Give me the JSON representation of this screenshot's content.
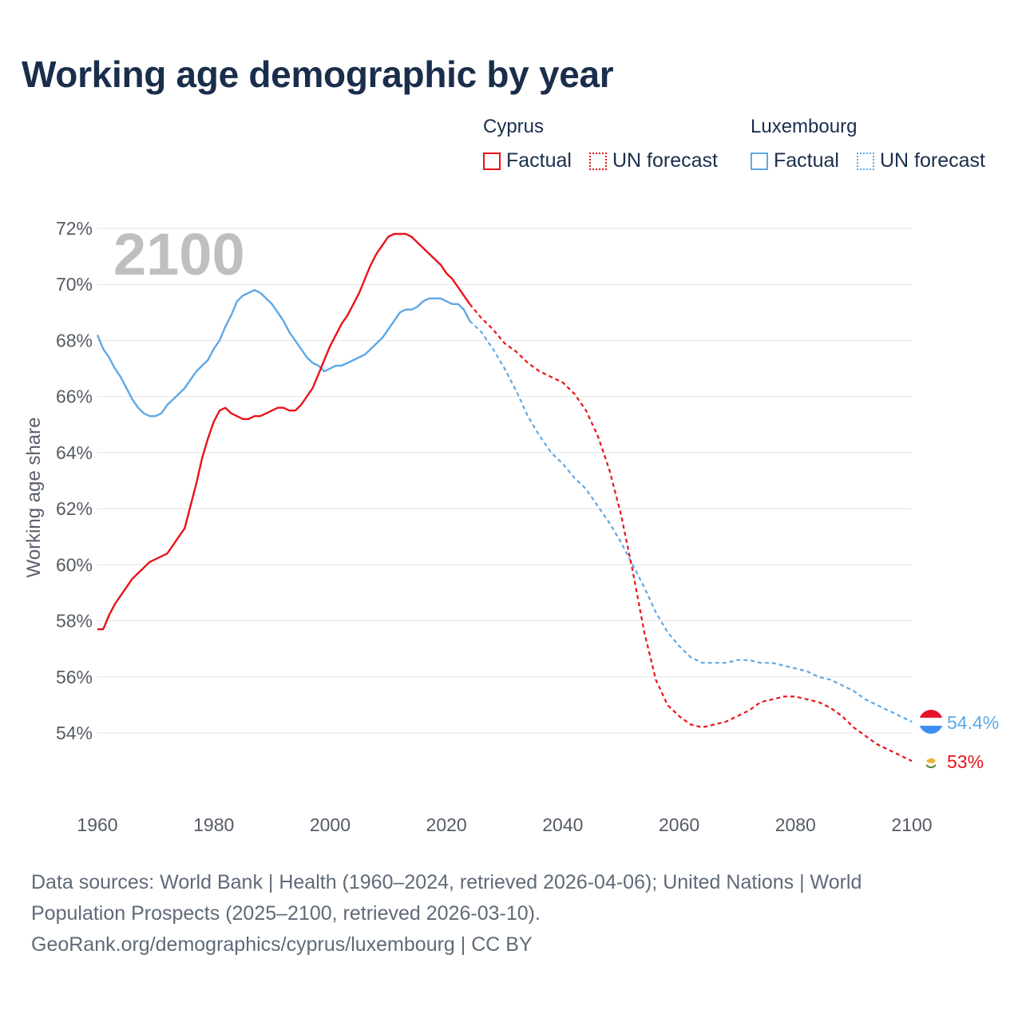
{
  "title": "Working age demographic by year",
  "legend": {
    "groups": [
      {
        "name": "Cyprus",
        "color": "#e8131b",
        "factual_label": "Factual",
        "forecast_label": "UN forecast"
      },
      {
        "name": "Luxembourg",
        "color": "#5fa8e6",
        "factual_label": "Factual",
        "forecast_label": "UN forecast"
      }
    ]
  },
  "footer": {
    "line1": "Data sources: World Bank | Health (1960–2024, retrieved 2026-04-06); United Nations | World",
    "line2": "Population Prospects (2025–2100, retrieved 2026-03-10).",
    "line3": "GeoRank.org/demographics/cyprus/luxembourg | CC BY"
  },
  "chart_data": {
    "type": "line",
    "title": "Working age demographic by year",
    "xlabel": "",
    "ylabel": "Working age share",
    "current_year_label": "2100",
    "xlim": [
      1960,
      2100
    ],
    "ylim": [
      52,
      72
    ],
    "x_ticks": [
      1960,
      1980,
      2000,
      2020,
      2040,
      2060,
      2080,
      2100
    ],
    "y_ticks": [
      54,
      56,
      58,
      60,
      62,
      64,
      66,
      68,
      70,
      72
    ],
    "y_tick_labels": [
      "54%",
      "56%",
      "58%",
      "60%",
      "62%",
      "64%",
      "66%",
      "68%",
      "70%",
      "72%"
    ],
    "grid": true,
    "series": [
      {
        "name": "Cyprus",
        "color": "#e8131b",
        "end_label": "53%",
        "flag_icon": "cyprus-flag-icon",
        "factual": {
          "x": [
            1960,
            1961,
            1962,
            1963,
            1964,
            1965,
            1966,
            1967,
            1968,
            1969,
            1970,
            1971,
            1972,
            1973,
            1974,
            1975,
            1976,
            1977,
            1978,
            1979,
            1980,
            1981,
            1982,
            1983,
            1984,
            1985,
            1986,
            1987,
            1988,
            1989,
            1990,
            1991,
            1992,
            1993,
            1994,
            1995,
            1996,
            1997,
            1998,
            1999,
            2000,
            2001,
            2002,
            2003,
            2004,
            2005,
            2006,
            2007,
            2008,
            2009,
            2010,
            2011,
            2012,
            2013,
            2014,
            2015,
            2016,
            2017,
            2018,
            2019,
            2020,
            2021,
            2022,
            2023,
            2024
          ],
          "y": [
            57.7,
            57.7,
            58.2,
            58.6,
            58.9,
            59.2,
            59.5,
            59.7,
            59.9,
            60.1,
            60.2,
            60.3,
            60.4,
            60.7,
            61.0,
            61.3,
            62.1,
            62.9,
            63.8,
            64.5,
            65.1,
            65.5,
            65.6,
            65.4,
            65.3,
            65.2,
            65.2,
            65.3,
            65.3,
            65.4,
            65.5,
            65.6,
            65.6,
            65.5,
            65.5,
            65.7,
            66.0,
            66.3,
            66.8,
            67.3,
            67.8,
            68.2,
            68.6,
            68.9,
            69.3,
            69.7,
            70.2,
            70.7,
            71.1,
            71.4,
            71.7,
            71.8,
            71.8,
            71.8,
            71.7,
            71.5,
            71.3,
            71.1,
            70.9,
            70.7,
            70.4,
            70.2,
            69.9,
            69.6,
            69.3
          ]
        },
        "forecast": {
          "x": [
            2024,
            2026,
            2028,
            2030,
            2032,
            2034,
            2036,
            2038,
            2040,
            2042,
            2044,
            2046,
            2048,
            2050,
            2052,
            2054,
            2056,
            2058,
            2060,
            2062,
            2064,
            2066,
            2068,
            2070,
            2072,
            2074,
            2076,
            2078,
            2080,
            2082,
            2084,
            2086,
            2088,
            2090,
            2092,
            2094,
            2096,
            2098,
            2100
          ],
          "y": [
            69.3,
            68.8,
            68.4,
            67.9,
            67.6,
            67.2,
            66.9,
            66.7,
            66.5,
            66.1,
            65.5,
            64.6,
            63.4,
            61.8,
            59.8,
            57.6,
            55.9,
            55.0,
            54.6,
            54.3,
            54.2,
            54.3,
            54.4,
            54.6,
            54.8,
            55.1,
            55.2,
            55.3,
            55.3,
            55.2,
            55.1,
            54.9,
            54.6,
            54.2,
            53.9,
            53.6,
            53.4,
            53.2,
            53.0
          ]
        }
      },
      {
        "name": "Luxembourg",
        "color": "#5fa8e6",
        "end_label": "54.4%",
        "flag_icon": "luxembourg-flag-icon",
        "factual": {
          "x": [
            1960,
            1961,
            1962,
            1963,
            1964,
            1965,
            1966,
            1967,
            1968,
            1969,
            1970,
            1971,
            1972,
            1973,
            1974,
            1975,
            1976,
            1977,
            1978,
            1979,
            1980,
            1981,
            1982,
            1983,
            1984,
            1985,
            1986,
            1987,
            1988,
            1989,
            1990,
            1991,
            1992,
            1993,
            1994,
            1995,
            1996,
            1997,
            1998,
            1999,
            2000,
            2001,
            2002,
            2003,
            2004,
            2005,
            2006,
            2007,
            2008,
            2009,
            2010,
            2011,
            2012,
            2013,
            2014,
            2015,
            2016,
            2017,
            2018,
            2019,
            2020,
            2021,
            2022,
            2023,
            2024
          ],
          "y": [
            68.2,
            67.7,
            67.4,
            67.0,
            66.7,
            66.3,
            65.9,
            65.6,
            65.4,
            65.3,
            65.3,
            65.4,
            65.7,
            65.9,
            66.1,
            66.3,
            66.6,
            66.9,
            67.1,
            67.3,
            67.7,
            68.0,
            68.5,
            68.9,
            69.4,
            69.6,
            69.7,
            69.8,
            69.7,
            69.5,
            69.3,
            69.0,
            68.7,
            68.3,
            68.0,
            67.7,
            67.4,
            67.2,
            67.1,
            66.9,
            67.0,
            67.1,
            67.1,
            67.2,
            67.3,
            67.4,
            67.5,
            67.7,
            67.9,
            68.1,
            68.4,
            68.7,
            69.0,
            69.1,
            69.1,
            69.2,
            69.4,
            69.5,
            69.5,
            69.5,
            69.4,
            69.3,
            69.3,
            69.1,
            68.7
          ]
        },
        "forecast": {
          "x": [
            2024,
            2026,
            2028,
            2030,
            2032,
            2034,
            2036,
            2038,
            2040,
            2042,
            2044,
            2046,
            2048,
            2050,
            2052,
            2054,
            2056,
            2058,
            2060,
            2062,
            2064,
            2066,
            2068,
            2070,
            2072,
            2074,
            2076,
            2078,
            2080,
            2082,
            2084,
            2086,
            2088,
            2090,
            2092,
            2094,
            2096,
            2098,
            2100
          ],
          "y": [
            68.7,
            68.3,
            67.7,
            67.0,
            66.2,
            65.3,
            64.6,
            64.0,
            63.6,
            63.1,
            62.7,
            62.1,
            61.5,
            60.8,
            60.0,
            59.2,
            58.3,
            57.6,
            57.1,
            56.7,
            56.5,
            56.5,
            56.5,
            56.6,
            56.6,
            56.5,
            56.5,
            56.4,
            56.3,
            56.2,
            56.0,
            55.9,
            55.7,
            55.5,
            55.2,
            55.0,
            54.8,
            54.6,
            54.4
          ]
        }
      }
    ]
  }
}
